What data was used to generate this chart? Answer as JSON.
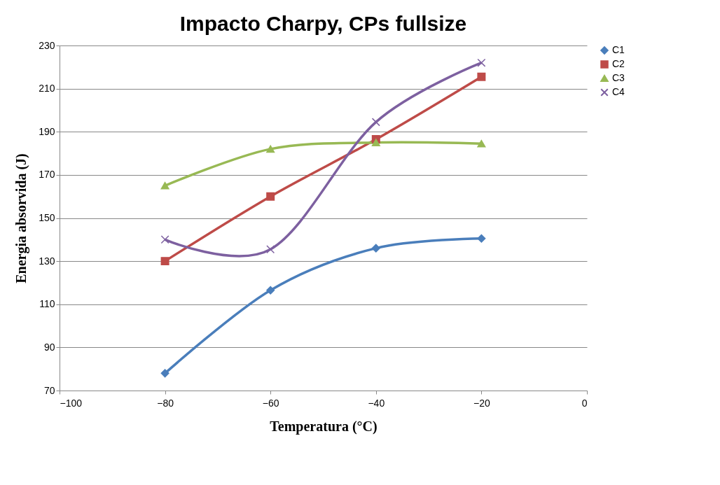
{
  "chart_data": {
    "type": "line",
    "title": "Impacto Charpy, CPs fullsize",
    "xlabel": "Temperatura (°C)",
    "ylabel": "Energia absorvida (J)",
    "x": [
      -80,
      -60,
      -40,
      -20
    ],
    "series": [
      {
        "name": "C1",
        "color": "#4a7ebb",
        "marker": "diamond",
        "values": [
          78,
          116.5,
          136,
          140.5
        ]
      },
      {
        "name": "C2",
        "color": "#be4b48",
        "marker": "square",
        "values": [
          130,
          160,
          186.5,
          215.5
        ]
      },
      {
        "name": "C3",
        "color": "#98b954",
        "marker": "triangle",
        "values": [
          165,
          182,
          185,
          184.5
        ]
      },
      {
        "name": "C4",
        "color": "#7d60a0",
        "marker": "cross",
        "values": [
          140,
          135.5,
          194.5,
          222
        ]
      }
    ],
    "xlim": [
      -100,
      0
    ],
    "xticks": [
      -100,
      -80,
      -60,
      -40,
      -20,
      0
    ],
    "ylim": [
      70,
      230
    ],
    "yticks": [
      70,
      90,
      110,
      130,
      150,
      170,
      190,
      210,
      230
    ],
    "grid": "y",
    "legend": "right",
    "line_style": "solid"
  }
}
